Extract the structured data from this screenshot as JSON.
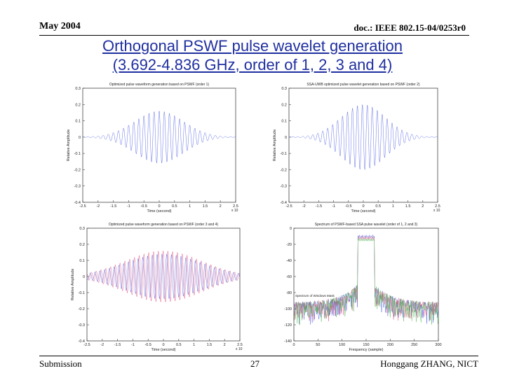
{
  "header": {
    "date": "May 2004",
    "doc": "doc.: IEEE 802.15-04/0253r0"
  },
  "title": {
    "line1": "Orthogonal PSWF pulse wavelet generation",
    "line2": "(3.692-4.836 GHz, order of 1, 2, 3 and 4)"
  },
  "footer": {
    "submission": "Submission",
    "page": "27",
    "author": "Honggang ZHANG, NICT"
  },
  "colors": {
    "title": "#1f2f9f",
    "wave_blue": "#4a5be0",
    "wave_red": "#e04a7a",
    "wave_green": "#3fb04a"
  },
  "chart_data": [
    {
      "type": "line",
      "title": "Optimized pulse waveform generation based on PSWF (order 1)",
      "xlabel": "Time (second)",
      "ylabel": "Relative Amplitude",
      "x_exponent": "x 10",
      "x_ticks": [
        "-2.5",
        "-2",
        "-1.5",
        "-1",
        "-0.5",
        "0",
        "0.5",
        "1",
        "1.5",
        "2",
        "2.5"
      ],
      "y_ticks": [
        "0.3",
        "0.2",
        "0.1",
        "0",
        "-0.1",
        "-0.2",
        "-0.3",
        "-0.4"
      ],
      "xlim": [
        -2.5,
        2.5
      ],
      "ylim": [
        -0.4,
        0.3
      ],
      "series": [
        {
          "name": "order 1",
          "color": "#4a5be0",
          "amplitude": 0.16,
          "cycles": 30,
          "envelope": 0.32,
          "phase": 0.0
        }
      ]
    },
    {
      "type": "line",
      "title": "SSA-UWB optimized pulse wavelet generation based on PSWF (order 2)",
      "xlabel": "Time (second)",
      "ylabel": "Relative Amplitude",
      "x_exponent": "x 10",
      "x_ticks": [
        "-2.5",
        "-2",
        "-1.5",
        "-1",
        "-0.5",
        "0",
        "0.5",
        "1",
        "1.5",
        "2",
        "2.5"
      ],
      "y_ticks": [
        "0.3",
        "0.2",
        "0.1",
        "0",
        "-0.1",
        "-0.2",
        "-0.3",
        "-0.4"
      ],
      "xlim": [
        -2.5,
        2.5
      ],
      "ylim": [
        -0.4,
        0.3
      ],
      "series": [
        {
          "name": "order 2",
          "color": "#4a5be0",
          "amplitude": 0.2,
          "cycles": 30,
          "envelope": 0.3,
          "phase": 1.2
        }
      ]
    },
    {
      "type": "line",
      "title": "Optimized pulse waveform generation based on PSWF (order 3 and 4)",
      "xlabel": "Time (second)",
      "ylabel": "Relative Amplitude",
      "x_exponent": "x 10",
      "x_ticks": [
        "-2.5",
        "-2",
        "-1.5",
        "-1",
        "-0.5",
        "0",
        "0.5",
        "1",
        "1.5",
        "2",
        "2.5"
      ],
      "y_ticks": [
        "0.3",
        "0.2",
        "0.1",
        "0",
        "-0.1",
        "-0.2",
        "-0.3",
        "-0.4"
      ],
      "xlim": [
        -2.5,
        2.5
      ],
      "ylim": [
        -0.4,
        0.3
      ],
      "series": [
        {
          "name": "order 3",
          "color": "#e04a7a",
          "amplitude": 0.16,
          "cycles": 32,
          "envelope": 0.5,
          "phase": 0.4
        },
        {
          "name": "order 4",
          "color": "#4a5be0",
          "amplitude": 0.14,
          "cycles": 32,
          "envelope": 0.5,
          "phase": 2.0
        }
      ]
    },
    {
      "type": "line",
      "title": "Spectrum of PSWF-based SSA pulse wavelet (order of 1, 2 and 3)",
      "xlabel": "Frequency (sample)",
      "ylabel": "",
      "legend": "Spectrum of Windows Mask",
      "x_ticks": [
        "0",
        "50",
        "100",
        "150",
        "200",
        "250",
        "300"
      ],
      "y_ticks": [
        "0",
        "-20",
        "-40",
        "-60",
        "-80",
        "-100",
        "-120",
        "-140"
      ],
      "xlim": [
        0,
        300
      ],
      "ylim": [
        -140,
        0
      ],
      "peak_center": 150,
      "peak_halfwidth": 18,
      "peak_level": -8,
      "floor_level": -92,
      "series": [
        {
          "name": "order 1",
          "color": "#4a5be0"
        },
        {
          "name": "order 2",
          "color": "#e04a7a"
        },
        {
          "name": "order 3",
          "color": "#3fb04a"
        }
      ]
    }
  ]
}
